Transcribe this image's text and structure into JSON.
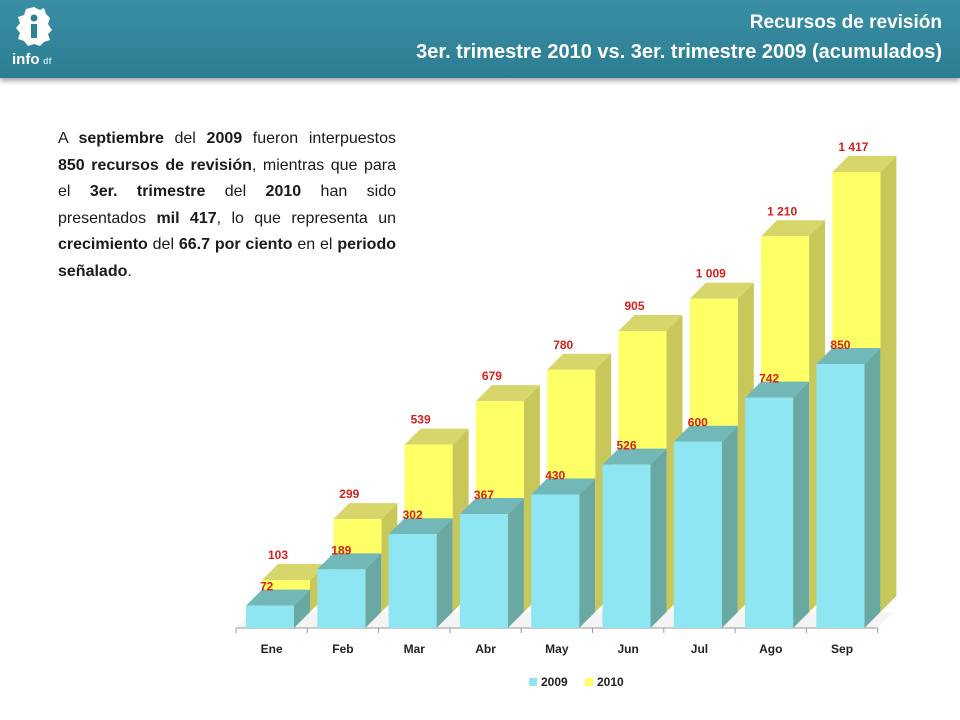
{
  "header": {
    "title": "Recursos de revisión",
    "subtitle": "3er. trimestre 2010 vs. 3er. trimestre 2009 (acumulados)",
    "logo_text": "info",
    "logo_suffix": "df"
  },
  "description": {
    "segments": [
      {
        "text": "A ",
        "bold": false
      },
      {
        "text": "septiembre",
        "bold": true
      },
      {
        "text": " del ",
        "bold": false
      },
      {
        "text": "2009",
        "bold": true
      },
      {
        "text": " fueron interpuestos ",
        "bold": false
      },
      {
        "text": "850 recursos de revisión",
        "bold": true
      },
      {
        "text": ", mientras que para el ",
        "bold": false
      },
      {
        "text": "3er. trimestre",
        "bold": true
      },
      {
        "text": " del ",
        "bold": false
      },
      {
        "text": "2010",
        "bold": true
      },
      {
        "text": " han sido presentados ",
        "bold": false
      },
      {
        "text": "mil 417",
        "bold": true
      },
      {
        "text": ", lo que representa un ",
        "bold": false
      },
      {
        "text": "crecimiento",
        "bold": true
      },
      {
        "text": " del ",
        "bold": false
      },
      {
        "text": "66.7 por ciento",
        "bold": true
      },
      {
        "text": " en el ",
        "bold": false
      },
      {
        "text": "periodo señalado",
        "bold": true
      },
      {
        "text": ".",
        "bold": false
      }
    ]
  },
  "colors": {
    "header": "#2e8196",
    "series_2009": "#8ee6f2",
    "series_2010": "#ffff66",
    "value_label": "#d42020"
  },
  "chart_data": {
    "type": "bar",
    "title": "",
    "xlabel": "",
    "ylabel": "",
    "categories": [
      "Ene",
      "Feb",
      "Mar",
      "Abr",
      "May",
      "Jun",
      "Jul",
      "Ago",
      "Sep"
    ],
    "series": [
      {
        "name": "2009",
        "values": [
          72,
          189,
          302,
          367,
          430,
          526,
          600,
          742,
          850
        ],
        "labels": [
          "72",
          "189",
          "302",
          "367",
          "430",
          "526",
          "600",
          "742",
          "850"
        ]
      },
      {
        "name": "2010",
        "values": [
          103,
          299,
          539,
          679,
          780,
          905,
          1009,
          1210,
          1417
        ],
        "labels": [
          "103",
          "299",
          "539",
          "679",
          "780",
          "905",
          "1 009",
          "1 210",
          "1 417"
        ]
      }
    ],
    "ylim": [
      0,
      1417
    ],
    "grid": false,
    "legend": "bottom",
    "style": "3d-clustered-depth"
  }
}
